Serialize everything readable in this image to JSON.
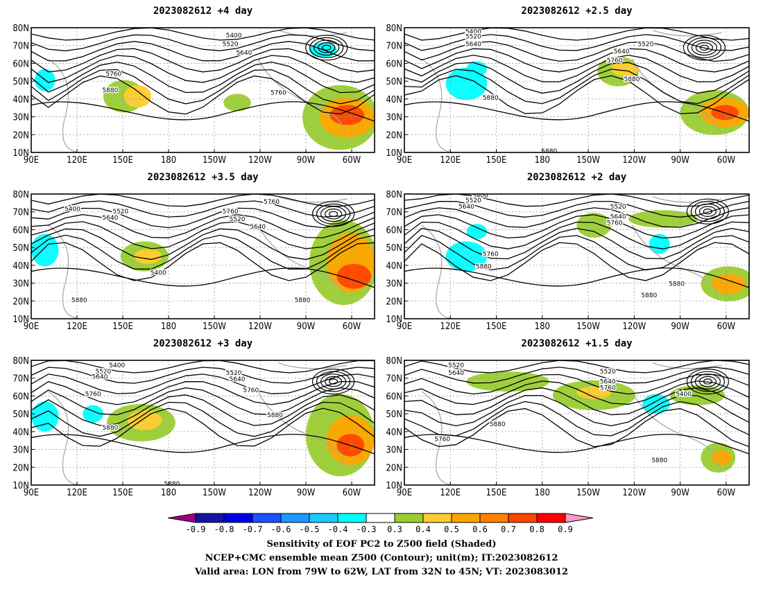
{
  "panels": [
    {
      "title": "2023082612  +4 day",
      "contours": [
        "5400",
        "5520",
        "5640",
        "5760",
        "5880",
        "5760"
      ]
    },
    {
      "title": "2023082612  +2.5 day",
      "contours": [
        "5400",
        "5520",
        "5640",
        "5520",
        "5640",
        "5760",
        "5880",
        "5880",
        "5880"
      ]
    },
    {
      "title": "2023082612  +3.5 day",
      "contours": [
        "5400",
        "5520",
        "5640",
        "5760",
        "5520",
        "5640",
        "5760",
        "5400",
        "5880",
        "5880"
      ]
    },
    {
      "title": "2023082612  +2 day",
      "contours": [
        "5400",
        "5520",
        "5640",
        "5520",
        "5640",
        "5760",
        "5760",
        "5880",
        "5880",
        "5880"
      ]
    },
    {
      "title": "2023082612  +3 day",
      "contours": [
        "5400",
        "5520",
        "5640",
        "5520",
        "5640",
        "5760",
        "5760",
        "5880",
        "5880",
        "5880"
      ]
    },
    {
      "title": "2023082612  +1.5 day",
      "contours": [
        "5520",
        "5640",
        "5520",
        "5640",
        "5760",
        "5400",
        "5880",
        "5760",
        "5880"
      ]
    }
  ],
  "x_ticks": [
    "90E",
    "120E",
    "150E",
    "180",
    "150W",
    "120W",
    "90W",
    "60W"
  ],
  "y_ticks": [
    "10N",
    "20N",
    "30N",
    "40N",
    "50N",
    "60N",
    "70N",
    "80N"
  ],
  "colorbar": {
    "labels": [
      "-0.9",
      "-0.8",
      "-0.7",
      "-0.6",
      "-0.5",
      "-0.4",
      "-0.3",
      "0.3",
      "0.4",
      "0.5",
      "0.6",
      "0.7",
      "0.8",
      "0.9"
    ],
    "colors": [
      "#a0007c",
      "#1414a0",
      "#0000e6",
      "#1e50ff",
      "#1e96ff",
      "#1ec8ff",
      "#00ffff",
      "#ffffff",
      "#9acd32",
      "#ffcc33",
      "#ffa500",
      "#ff7f00",
      "#ff4500",
      "#ff0000",
      "#ff99cc"
    ]
  },
  "caption": [
    "Sensitivity of EOF PC2 to Z500 field (Shaded)",
    "NCEP+CMC ensemble mean Z500 (Contour); unit(m); IT:2023082612",
    "Valid area: LON from 79W to 62W, LAT from 32N to 45N; VT: 2023083012"
  ]
}
